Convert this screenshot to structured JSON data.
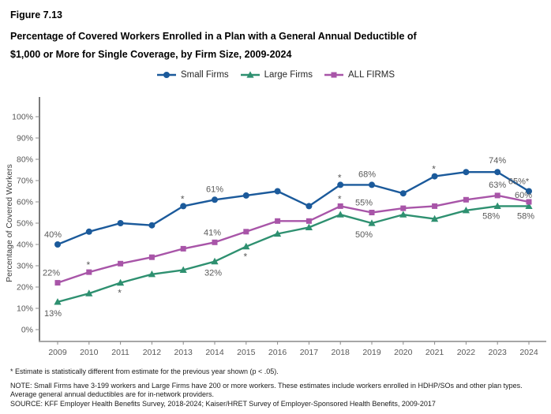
{
  "header": {
    "figure_label": "Figure 7.13",
    "title_lines": [
      "Percentage of Covered Workers Enrolled in a Plan with a General Annual Deductible of",
      "$1,000 or More for Single Coverage, by Firm Size, 2009-2024"
    ]
  },
  "chart_data": {
    "type": "line",
    "title": "Percentage of Covered Workers Enrolled in a Plan with a General Annual Deductible of $1,000 or More for Single Coverage, by Firm Size, 2009-2024",
    "xlabel": "",
    "ylabel": "Percentage of Covered Workers",
    "ylim": [
      0,
      100
    ],
    "yticks": [
      0,
      10,
      20,
      30,
      40,
      50,
      60,
      70,
      80,
      90,
      100
    ],
    "ytick_suffix": "%",
    "grid": false,
    "legend_position": "top-center",
    "axis_color": "#333333",
    "x_axis_line_color": "#a6a6a6",
    "tick_text_color": "#595959",
    "x": [
      2009,
      2010,
      2011,
      2012,
      2013,
      2014,
      2015,
      2016,
      2017,
      2018,
      2019,
      2020,
      2021,
      2022,
      2023,
      2024
    ],
    "series": [
      {
        "name": "Small Firms",
        "color": "#1b5a9b",
        "marker": "circle",
        "label_side": "above",
        "values": [
          40,
          46,
          50,
          49,
          58,
          61,
          63,
          65,
          58,
          68,
          68,
          64,
          72,
          74,
          74,
          65
        ],
        "labels": [
          {
            "x": 2009,
            "text": "40%",
            "dx": -6
          },
          {
            "x": 2014,
            "text": "61%",
            "dy": -10
          },
          {
            "x": 2019,
            "text": "68%",
            "dx": -6,
            "dy": -10
          },
          {
            "x": 2023,
            "text": "74%",
            "dy": -11
          },
          {
            "x": 2024,
            "text": "65%*",
            "dx": -13,
            "dy": -9
          }
        ],
        "asterisks": [
          {
            "x": 2013,
            "side": "above"
          },
          {
            "x": 2018,
            "side": "above"
          },
          {
            "x": 2021,
            "side": "above"
          }
        ]
      },
      {
        "name": "Large Firms",
        "color": "#2e9070",
        "marker": "triangle",
        "label_side": "below",
        "values": [
          13,
          17,
          22,
          26,
          28,
          32,
          39,
          45,
          48,
          54,
          50,
          54,
          52,
          56,
          58,
          58
        ],
        "labels": [
          {
            "x": 2009,
            "text": "13%",
            "dx": -6
          },
          {
            "x": 2014,
            "text": "32%",
            "dx": -2
          },
          {
            "x": 2019,
            "text": "50%",
            "dx": -10
          },
          {
            "x": 2023,
            "text": "58%",
            "dx": -8,
            "dy": 16
          },
          {
            "x": 2024,
            "text": "58%",
            "dx": -4,
            "dy": 16
          }
        ],
        "asterisks": [
          {
            "x": 2011,
            "side": "below"
          },
          {
            "x": 2015,
            "side": "below"
          }
        ]
      },
      {
        "name": "ALL FIRMS",
        "color": "#a855a8",
        "marker": "square",
        "label_side": "above",
        "values": [
          22,
          27,
          31,
          34,
          38,
          41,
          46,
          51,
          51,
          58,
          55,
          57,
          58,
          61,
          63,
          60
        ],
        "labels": [
          {
            "x": 2009,
            "text": "22%",
            "dx": -8
          },
          {
            "x": 2014,
            "text": "41%",
            "dx": -3
          },
          {
            "x": 2019,
            "text": "55%",
            "dx": -10
          },
          {
            "x": 2023,
            "text": "63%",
            "dy": -10
          },
          {
            "x": 2024,
            "text": "60%",
            "dx": -7,
            "dy": -5
          }
        ],
        "asterisks": [
          {
            "x": 2010,
            "side": "above"
          },
          {
            "x": 2018,
            "side": "above"
          }
        ]
      }
    ]
  },
  "footnotes": {
    "significance": "* Estimate is statistically different from estimate for the previous year shown (p < .05).",
    "note": "NOTE: Small Firms have 3-199 workers and Large Firms have 200 or more workers. These estimates include workers enrolled in HDHP/SOs and other plan types. Average general annual deductibles are for in-network providers.",
    "source": "SOURCE: KFF Employer Health Benefits Survey, 2018-2024; Kaiser/HRET Survey of Employer-Sponsored Health Benefits, 2009-2017"
  }
}
